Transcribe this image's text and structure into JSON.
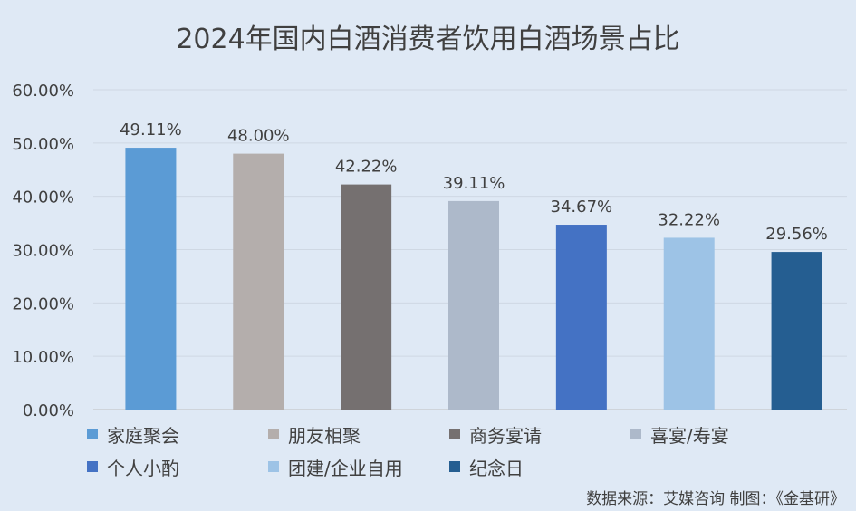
{
  "chart_data": {
    "type": "bar",
    "title": "2024年国内白酒消费者饮用白酒场景占比",
    "categories": [
      "家庭聚会",
      "朋友相聚",
      "商务宴请",
      "喜宴/寿宴",
      "个人小酌",
      "团建/企业自用",
      "纪念日"
    ],
    "values": [
      49.11,
      48.0,
      42.22,
      39.11,
      34.67,
      32.22,
      29.56
    ],
    "data_labels": [
      "49.11%",
      "48.00%",
      "42.22%",
      "39.11%",
      "34.67%",
      "32.22%",
      "29.56%"
    ],
    "colors": [
      "#5b9bd5",
      "#b4aeac",
      "#757070",
      "#adb9ca",
      "#4472c4",
      "#9dc3e6",
      "#255e91"
    ],
    "ylim": [
      0,
      60
    ],
    "yticks": [
      "0.00%",
      "10.00%",
      "20.00%",
      "30.00%",
      "40.00%",
      "50.00%",
      "60.00%"
    ],
    "grid": true,
    "legend_position": "bottom",
    "xlabel": "",
    "ylabel": ""
  },
  "source_note": "数据来源：艾媒咨询  制图：《金基研》"
}
